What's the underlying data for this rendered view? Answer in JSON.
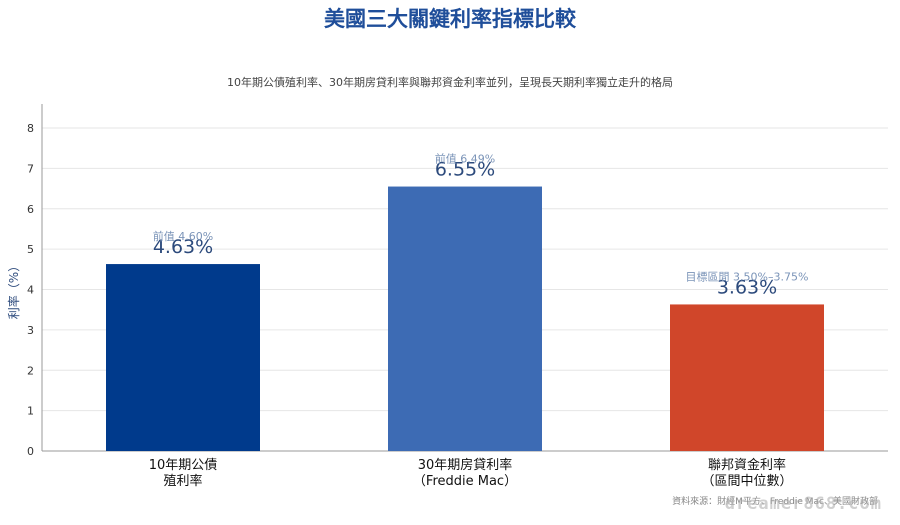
{
  "chart_data": {
    "type": "bar",
    "title": "美國三大關鍵利率指標比較",
    "subtitle": "10年期公債殖利率、30年期房貸利率與聯邦資金利率並列，呈現長天期利率獨立走升的格局",
    "ylabel": "利率（%）",
    "ylim": [
      0,
      8
    ],
    "yticks": [
      0,
      1,
      2,
      3,
      4,
      5,
      6,
      7,
      8
    ],
    "grid": true,
    "categories": [
      [
        "10年期公債",
        "殖利率"
      ],
      [
        "30年期房貸利率",
        "（Freddie Mac）"
      ],
      [
        "聯邦資金利率",
        "（區間中位數）"
      ]
    ],
    "values": [
      4.63,
      6.55,
      3.63
    ],
    "value_labels": [
      "4.63%",
      "6.55%",
      "3.63%"
    ],
    "annotations": [
      "前值 4.60%",
      "前值 6.49%",
      "目標區間 3.50%–3.75%"
    ],
    "colors": [
      "#003a8c",
      "#3d6bb4",
      "#d0462a"
    ],
    "label_color": "#2c4a7c",
    "annotation_color": "#7b94b8"
  },
  "source_note": "資料來源：財經M平方、Freddie Mac、美國財政部",
  "watermark": "dreamer868.com"
}
